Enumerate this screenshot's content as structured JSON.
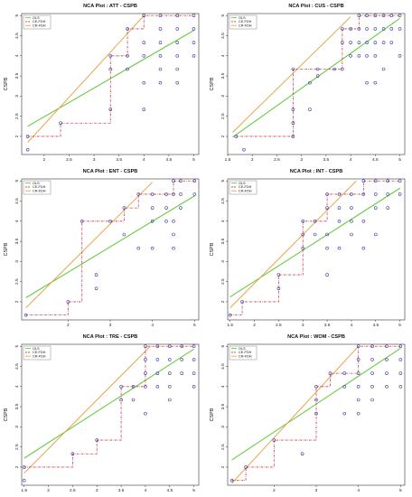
{
  "legend_labels": [
    "OLS",
    "CE-FDH",
    "CR-FDH"
  ],
  "colors": {
    "ols": "#66cc44",
    "ce_fdh": "#cc3344",
    "cr_fdh": "#e8a64a",
    "points": "#3b3ea8",
    "axis": "#333333"
  },
  "chart_data": [
    {
      "type": "scatter",
      "title": "NCA Plot : ATT - CSPB",
      "xlabel": "",
      "ylabel": "CSPB",
      "grid": false,
      "legend": "top-left",
      "xlim": [
        1.55,
        5.1
      ],
      "ylim": [
        1.55,
        5.05
      ],
      "xticks": [
        2.0,
        2.5,
        3.0,
        3.5,
        4.0,
        4.5,
        5.0
      ],
      "yticks": [
        2.0,
        2.5,
        3.0,
        3.5,
        4.0,
        4.5,
        5.0
      ],
      "points": [
        [
          1.67,
          1.67
        ],
        [
          1.67,
          2.0
        ],
        [
          2.33,
          2.33
        ],
        [
          3.33,
          2.67
        ],
        [
          3.33,
          3.67
        ],
        [
          3.33,
          4.0
        ],
        [
          3.67,
          3.67
        ],
        [
          3.67,
          4.0
        ],
        [
          3.67,
          4.67
        ],
        [
          4.0,
          2.67
        ],
        [
          4.0,
          3.33
        ],
        [
          4.0,
          4.0
        ],
        [
          4.0,
          4.33
        ],
        [
          4.0,
          5.0
        ],
        [
          4.33,
          3.33
        ],
        [
          4.33,
          3.67
        ],
        [
          4.33,
          4.0
        ],
        [
          4.33,
          4.33
        ],
        [
          4.33,
          4.67
        ],
        [
          4.33,
          5.0
        ],
        [
          4.67,
          3.33
        ],
        [
          4.67,
          3.67
        ],
        [
          4.67,
          4.0
        ],
        [
          4.67,
          4.33
        ],
        [
          4.67,
          4.67
        ],
        [
          4.67,
          5.0
        ],
        [
          5.0,
          4.0
        ],
        [
          5.0,
          4.33
        ],
        [
          5.0,
          4.67
        ],
        [
          5.0,
          5.0
        ]
      ],
      "ols": [
        [
          1.67,
          2.25
        ],
        [
          5.0,
          4.63
        ]
      ],
      "cr_fdh": [
        [
          1.67,
          1.85
        ],
        [
          4.0,
          5.0
        ]
      ],
      "ce_fdh": [
        [
          1.67,
          2.0
        ],
        [
          2.33,
          2.0
        ],
        [
          2.33,
          2.33
        ],
        [
          3.33,
          2.33
        ],
        [
          3.33,
          4.0
        ],
        [
          3.67,
          4.0
        ],
        [
          3.67,
          4.67
        ],
        [
          4.0,
          4.67
        ],
        [
          4.0,
          5.0
        ],
        [
          5.0,
          5.0
        ]
      ]
    },
    {
      "type": "scatter",
      "title": "NCA Plot : CUS - CSPB",
      "xlabel": "",
      "ylabel": "CSPB",
      "grid": false,
      "legend": "top-left",
      "xlim": [
        1.5,
        5.1
      ],
      "ylim": [
        1.55,
        5.05
      ],
      "xticks": [
        1.5,
        2.0,
        2.5,
        3.0,
        3.5,
        4.0,
        4.5,
        5.0
      ],
      "yticks": [
        2.0,
        2.5,
        3.0,
        3.5,
        4.0,
        4.5,
        5.0
      ],
      "points": [
        [
          1.67,
          2.0
        ],
        [
          1.83,
          1.67
        ],
        [
          2.83,
          2.0
        ],
        [
          2.83,
          2.33
        ],
        [
          2.83,
          2.67
        ],
        [
          2.83,
          3.67
        ],
        [
          3.17,
          2.67
        ],
        [
          3.17,
          3.33
        ],
        [
          3.33,
          3.67
        ],
        [
          3.33,
          3.5
        ],
        [
          3.67,
          3.67
        ],
        [
          3.83,
          3.67
        ],
        [
          3.83,
          4.33
        ],
        [
          3.83,
          4.67
        ],
        [
          4.0,
          4.0
        ],
        [
          4.0,
          4.33
        ],
        [
          4.0,
          4.67
        ],
        [
          4.17,
          4.0
        ],
        [
          4.17,
          4.33
        ],
        [
          4.17,
          4.67
        ],
        [
          4.17,
          5.0
        ],
        [
          4.33,
          3.33
        ],
        [
          4.33,
          4.0
        ],
        [
          4.33,
          4.33
        ],
        [
          4.33,
          4.67
        ],
        [
          4.33,
          5.0
        ],
        [
          4.5,
          3.33
        ],
        [
          4.5,
          4.0
        ],
        [
          4.5,
          4.33
        ],
        [
          4.5,
          4.67
        ],
        [
          4.5,
          5.0
        ],
        [
          4.67,
          3.67
        ],
        [
          4.67,
          4.33
        ],
        [
          4.67,
          4.67
        ],
        [
          4.67,
          5.0
        ],
        [
          4.83,
          4.33
        ],
        [
          4.83,
          4.67
        ],
        [
          4.83,
          5.0
        ],
        [
          5.0,
          4.0
        ],
        [
          5.0,
          4.67
        ],
        [
          5.0,
          5.0
        ]
      ],
      "ols": [
        [
          1.6,
          1.98
        ],
        [
          5.0,
          4.93
        ]
      ],
      "cr_fdh": [
        [
          1.6,
          2.1
        ],
        [
          4.0,
          4.97
        ]
      ],
      "ce_fdh": [
        [
          1.67,
          2.0
        ],
        [
          2.83,
          2.0
        ],
        [
          2.83,
          3.67
        ],
        [
          3.83,
          3.67
        ],
        [
          3.83,
          4.67
        ],
        [
          4.17,
          4.67
        ],
        [
          4.17,
          5.0
        ],
        [
          5.0,
          5.0
        ]
      ]
    },
    {
      "type": "scatter",
      "title": "NCA Plot : ENT - CSPB",
      "xlabel": "",
      "ylabel": "CSPB",
      "grid": false,
      "legend": "top-left",
      "xlim": [
        0.9,
        5.1
      ],
      "ylim": [
        1.55,
        5.05
      ],
      "xticks": [
        2,
        3,
        4,
        5
      ],
      "yticks": [
        2.0,
        2.5,
        3.0,
        3.5,
        4.0,
        4.5,
        5.0
      ],
      "points": [
        [
          1.0,
          1.67
        ],
        [
          2.0,
          2.0
        ],
        [
          2.33,
          4.0
        ],
        [
          2.67,
          2.33
        ],
        [
          2.67,
          2.67
        ],
        [
          3.0,
          4.0
        ],
        [
          3.33,
          3.67
        ],
        [
          3.33,
          4.33
        ],
        [
          3.67,
          3.33
        ],
        [
          3.67,
          4.67
        ],
        [
          4.0,
          3.33
        ],
        [
          4.0,
          4.0
        ],
        [
          4.0,
          4.33
        ],
        [
          4.0,
          4.67
        ],
        [
          4.33,
          4.0
        ],
        [
          4.33,
          4.33
        ],
        [
          4.33,
          4.67
        ],
        [
          4.5,
          3.33
        ],
        [
          4.5,
          3.67
        ],
        [
          4.5,
          4.0
        ],
        [
          4.5,
          4.67
        ],
        [
          4.5,
          5.0
        ],
        [
          4.67,
          4.33
        ],
        [
          4.67,
          4.67
        ],
        [
          4.67,
          5.0
        ],
        [
          5.0,
          4.67
        ],
        [
          5.0,
          5.0
        ]
      ],
      "ols": [
        [
          1.0,
          2.1
        ],
        [
          5.0,
          4.63
        ]
      ],
      "cr_fdh": [
        [
          1.0,
          1.85
        ],
        [
          4.0,
          4.97
        ]
      ],
      "ce_fdh": [
        [
          1.0,
          1.67
        ],
        [
          2.0,
          1.67
        ],
        [
          2.0,
          2.0
        ],
        [
          2.33,
          2.0
        ],
        [
          2.33,
          4.0
        ],
        [
          3.33,
          4.0
        ],
        [
          3.33,
          4.33
        ],
        [
          3.67,
          4.33
        ],
        [
          3.67,
          4.67
        ],
        [
          4.5,
          4.67
        ],
        [
          4.5,
          5.0
        ],
        [
          5.0,
          5.0
        ]
      ]
    },
    {
      "type": "scatter",
      "title": "NCA Plot : INT - CSPB",
      "xlabel": "",
      "ylabel": "CSPB",
      "grid": false,
      "legend": "top-left",
      "xlim": [
        1.45,
        5.1
      ],
      "ylim": [
        1.55,
        5.05
      ],
      "xticks": [
        1.5,
        2.0,
        2.5,
        3.0,
        3.5,
        4.0,
        4.5,
        5.0
      ],
      "yticks": [
        2.0,
        2.5,
        3.0,
        3.5,
        4.0,
        4.5,
        5.0
      ],
      "points": [
        [
          1.5,
          1.67
        ],
        [
          1.75,
          2.0
        ],
        [
          2.5,
          2.33
        ],
        [
          2.5,
          2.67
        ],
        [
          3.0,
          3.33
        ],
        [
          3.0,
          3.67
        ],
        [
          3.0,
          4.0
        ],
        [
          3.25,
          3.67
        ],
        [
          3.25,
          4.0
        ],
        [
          3.5,
          2.67
        ],
        [
          3.5,
          3.33
        ],
        [
          3.5,
          3.67
        ],
        [
          3.5,
          4.33
        ],
        [
          3.5,
          4.67
        ],
        [
          3.75,
          3.33
        ],
        [
          3.75,
          4.0
        ],
        [
          3.75,
          4.33
        ],
        [
          3.75,
          4.67
        ],
        [
          4.0,
          3.67
        ],
        [
          4.0,
          4.0
        ],
        [
          4.0,
          4.33
        ],
        [
          4.0,
          4.67
        ],
        [
          4.25,
          3.33
        ],
        [
          4.25,
          4.0
        ],
        [
          4.25,
          4.67
        ],
        [
          4.25,
          5.0
        ],
        [
          4.5,
          3.67
        ],
        [
          4.5,
          4.33
        ],
        [
          4.5,
          4.67
        ],
        [
          4.5,
          5.0
        ],
        [
          4.75,
          4.33
        ],
        [
          4.75,
          4.67
        ],
        [
          4.75,
          5.0
        ],
        [
          5.0,
          4.67
        ],
        [
          5.0,
          5.0
        ]
      ],
      "ols": [
        [
          1.5,
          2.12
        ],
        [
          5.0,
          4.82
        ]
      ],
      "cr_fdh": [
        [
          1.5,
          1.85
        ],
        [
          4.1,
          5.0
        ]
      ],
      "ce_fdh": [
        [
          1.5,
          1.67
        ],
        [
          1.75,
          1.67
        ],
        [
          1.75,
          2.0
        ],
        [
          2.5,
          2.0
        ],
        [
          2.5,
          2.67
        ],
        [
          3.0,
          2.67
        ],
        [
          3.0,
          4.0
        ],
        [
          3.5,
          4.0
        ],
        [
          3.5,
          4.67
        ],
        [
          4.25,
          4.67
        ],
        [
          4.25,
          5.0
        ],
        [
          5.0,
          5.0
        ]
      ]
    },
    {
      "type": "scatter",
      "title": "NCA Plot : TRE - CSPB",
      "xlabel": "",
      "ylabel": "CSPB",
      "grid": false,
      "legend": "top-left",
      "xlim": [
        1.45,
        5.1
      ],
      "ylim": [
        1.55,
        5.05
      ],
      "xticks": [
        1.5,
        2.0,
        2.5,
        3.0,
        3.5,
        4.0,
        4.5,
        5.0
      ],
      "yticks": [
        2.0,
        2.5,
        3.0,
        3.5,
        4.0,
        4.5,
        5.0
      ],
      "points": [
        [
          1.5,
          1.67
        ],
        [
          1.5,
          2.0
        ],
        [
          2.5,
          2.33
        ],
        [
          3.0,
          2.67
        ],
        [
          3.5,
          3.67
        ],
        [
          3.5,
          4.0
        ],
        [
          3.75,
          3.67
        ],
        [
          3.75,
          4.0
        ],
        [
          4.0,
          3.33
        ],
        [
          4.0,
          4.0
        ],
        [
          4.0,
          4.33
        ],
        [
          4.0,
          4.67
        ],
        [
          4.0,
          5.0
        ],
        [
          4.25,
          4.0
        ],
        [
          4.25,
          4.33
        ],
        [
          4.25,
          4.67
        ],
        [
          4.25,
          5.0
        ],
        [
          4.5,
          3.67
        ],
        [
          4.5,
          4.0
        ],
        [
          4.5,
          4.33
        ],
        [
          4.5,
          4.67
        ],
        [
          4.5,
          5.0
        ],
        [
          4.75,
          4.33
        ],
        [
          4.75,
          4.67
        ],
        [
          4.75,
          5.0
        ],
        [
          5.0,
          4.0
        ],
        [
          5.0,
          4.33
        ],
        [
          5.0,
          4.67
        ],
        [
          5.0,
          5.0
        ]
      ],
      "ols": [
        [
          1.5,
          2.22
        ],
        [
          5.0,
          4.93
        ]
      ],
      "cr_fdh": [
        [
          1.5,
          1.85
        ],
        [
          4.1,
          5.0
        ]
      ],
      "ce_fdh": [
        [
          1.5,
          2.0
        ],
        [
          2.5,
          2.0
        ],
        [
          2.5,
          2.33
        ],
        [
          3.0,
          2.33
        ],
        [
          3.0,
          2.67
        ],
        [
          3.5,
          2.67
        ],
        [
          3.5,
          4.0
        ],
        [
          4.0,
          4.0
        ],
        [
          4.0,
          5.0
        ],
        [
          5.0,
          5.0
        ]
      ]
    },
    {
      "type": "scatter",
      "title": "NCA Plot : WOM - CSPB",
      "xlabel": "",
      "ylabel": "CSPB",
      "grid": false,
      "legend": "top-left",
      "xlim": [
        0.9,
        5.1
      ],
      "ylim": [
        1.55,
        5.05
      ],
      "xticks": [
        2,
        3,
        4,
        5
      ],
      "yticks": [
        2.0,
        2.5,
        3.0,
        3.5,
        4.0,
        4.5,
        5.0
      ],
      "points": [
        [
          1.0,
          1.67
        ],
        [
          1.33,
          2.0
        ],
        [
          2.0,
          2.67
        ],
        [
          2.67,
          2.33
        ],
        [
          3.0,
          3.33
        ],
        [
          3.0,
          3.67
        ],
        [
          3.0,
          4.0
        ],
        [
          3.33,
          4.33
        ],
        [
          3.67,
          3.33
        ],
        [
          3.67,
          4.0
        ],
        [
          3.67,
          4.33
        ],
        [
          4.0,
          3.33
        ],
        [
          4.0,
          3.67
        ],
        [
          4.0,
          4.0
        ],
        [
          4.0,
          4.33
        ],
        [
          4.0,
          4.67
        ],
        [
          4.0,
          5.0
        ],
        [
          4.33,
          3.67
        ],
        [
          4.33,
          4.0
        ],
        [
          4.33,
          4.33
        ],
        [
          4.33,
          4.67
        ],
        [
          4.33,
          5.0
        ],
        [
          4.67,
          4.0
        ],
        [
          4.67,
          4.33
        ],
        [
          4.67,
          4.67
        ],
        [
          4.67,
          5.0
        ],
        [
          5.0,
          4.0
        ],
        [
          5.0,
          4.33
        ],
        [
          5.0,
          4.67
        ],
        [
          5.0,
          5.0
        ]
      ],
      "ols": [
        [
          1.0,
          2.18
        ],
        [
          5.0,
          4.95
        ]
      ],
      "cr_fdh": [
        [
          1.0,
          1.6
        ],
        [
          4.0,
          5.0
        ]
      ],
      "ce_fdh": [
        [
          1.0,
          1.67
        ],
        [
          1.33,
          1.67
        ],
        [
          1.33,
          2.0
        ],
        [
          2.0,
          2.0
        ],
        [
          2.0,
          2.67
        ],
        [
          3.0,
          2.67
        ],
        [
          3.0,
          4.0
        ],
        [
          3.33,
          4.0
        ],
        [
          3.33,
          4.33
        ],
        [
          4.0,
          4.33
        ],
        [
          4.0,
          5.0
        ],
        [
          5.0,
          5.0
        ]
      ]
    }
  ]
}
